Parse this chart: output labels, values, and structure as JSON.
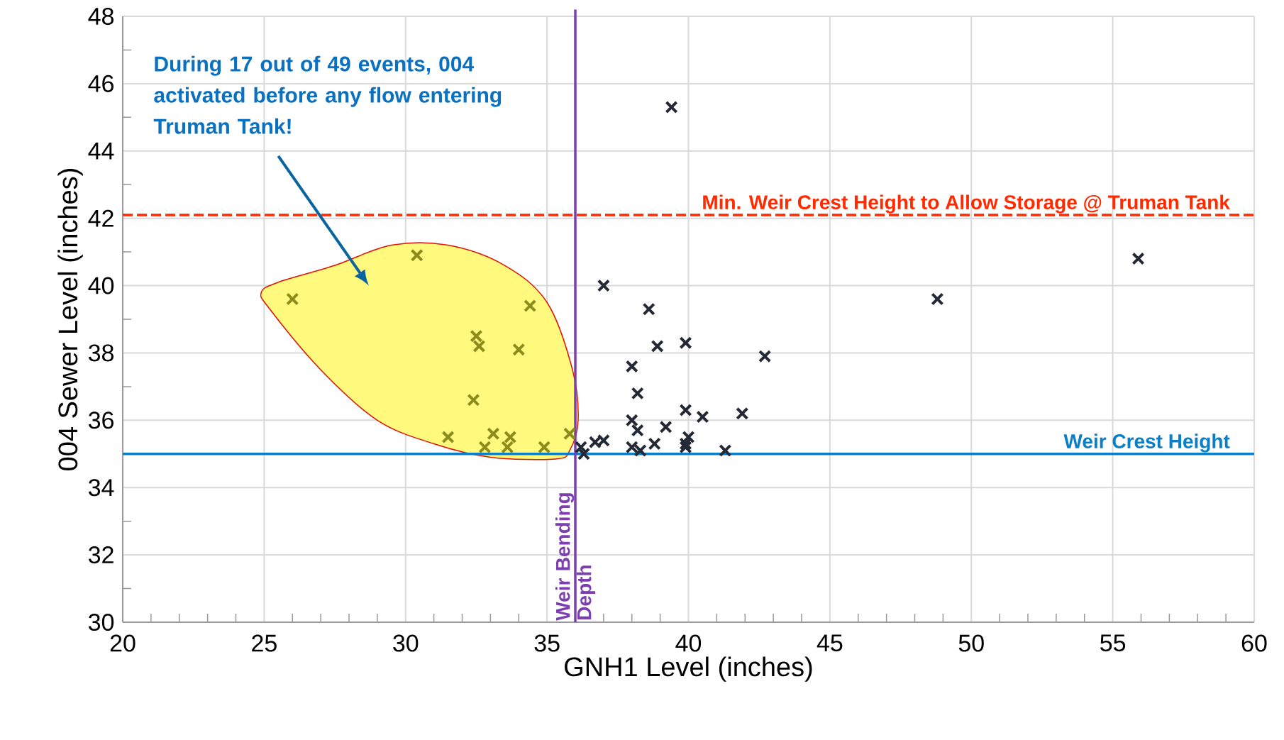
{
  "chart_data": {
    "type": "scatter",
    "xlabel": "GNH1 Level (inches)",
    "ylabel": "004 Sewer Level (inches)",
    "xlim": [
      20,
      60
    ],
    "ylim": [
      30,
      48
    ],
    "xticks": [
      20,
      25,
      30,
      35,
      40,
      45,
      50,
      55,
      60
    ],
    "yticks": [
      30,
      32,
      34,
      36,
      38,
      40,
      42,
      44,
      46,
      48
    ],
    "grid": true,
    "marker": "cross",
    "series": [
      {
        "color": "#8c8c1c",
        "x": [
          26.0,
          30.4,
          34.4,
          32.5,
          32.6,
          34.0,
          32.4,
          31.5,
          33.1,
          32.8,
          33.7,
          33.6,
          34.9,
          35.8
        ],
        "values": [
          39.6,
          40.9,
          39.4,
          38.5,
          38.2,
          38.1,
          36.6,
          35.5,
          35.6,
          35.2,
          35.5,
          35.2,
          35.2,
          35.6
        ]
      },
      {
        "color": "#232a35",
        "x": [
          39.4,
          55.9,
          48.8,
          37.0,
          38.6,
          38.9,
          39.9,
          42.7,
          38.0,
          38.2,
          41.9,
          39.9,
          40.5,
          38.0,
          38.2,
          39.2,
          40.0,
          39.9,
          38.8,
          41.3,
          37.0,
          36.7,
          36.2,
          36.3,
          38.0,
          38.3,
          39.9
        ],
        "values": [
          45.3,
          40.8,
          39.6,
          40.0,
          39.3,
          38.2,
          38.3,
          37.9,
          37.6,
          36.8,
          36.2,
          36.3,
          36.1,
          36.0,
          35.7,
          35.8,
          35.5,
          35.3,
          35.3,
          35.1,
          35.4,
          35.35,
          35.2,
          35.0,
          35.2,
          35.1,
          35.2
        ]
      }
    ],
    "ref_lines": [
      {
        "axis": "y",
        "value": 35,
        "label": "Weir Crest Height",
        "color": "#0a7fc8",
        "line_style": "solid"
      },
      {
        "axis": "y",
        "value": 42.1,
        "label": "Min. Weir Crest Height to Allow Storage @ Truman Tank",
        "color": "#ff2a00",
        "line_style": "dashed"
      },
      {
        "axis": "x",
        "value": 36,
        "label": "Weir Bending Depth",
        "color": "#7b3fb0",
        "line_style": "solid"
      }
    ],
    "annotations": [
      "During 17 out of 49 events, 004 activated before any flow entering Truman Tank!"
    ]
  }
}
